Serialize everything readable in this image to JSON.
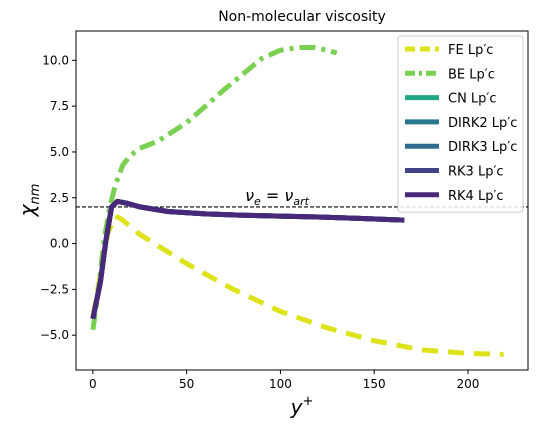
{
  "chart_data": {
    "type": "line",
    "title": "Non-molecular viscosity",
    "xlabel": {
      "main": "y",
      "sup": "+"
    },
    "ylabel": {
      "main": "χ",
      "sub": "nm"
    },
    "xlim": [
      -9,
      232
    ],
    "ylim": [
      -6.9,
      11.6
    ],
    "xticks": [
      0,
      50,
      100,
      150,
      200
    ],
    "yticks": [
      -5.0,
      -2.5,
      0.0,
      2.5,
      5.0,
      7.5,
      10.0
    ],
    "xtick_labels": [
      "0",
      "50",
      "100",
      "150",
      "200"
    ],
    "ytick_labels": [
      "−5.0",
      "−2.5",
      "0.0",
      "2.5",
      "5.0",
      "7.5",
      "10.0"
    ],
    "hline": {
      "y": 2.0,
      "label": {
        "nu": "ν",
        "e": "e",
        "eq": " = ",
        "art": "art"
      }
    },
    "legend": {
      "position": "top-right"
    },
    "series": [
      {
        "name": "FE Lp′c",
        "color": "#dde318",
        "style": "dashed",
        "points": [
          [
            0,
            -4.0
          ],
          [
            4,
            -1.7
          ],
          [
            8,
            0.6
          ],
          [
            12,
            1.5
          ],
          [
            15,
            1.35
          ],
          [
            25,
            0.5
          ],
          [
            50,
            -1.1
          ],
          [
            75,
            -2.5
          ],
          [
            100,
            -3.7
          ],
          [
            125,
            -4.6
          ],
          [
            150,
            -5.3
          ],
          [
            175,
            -5.8
          ],
          [
            200,
            -6.0
          ],
          [
            219,
            -6.05
          ]
        ]
      },
      {
        "name": "BE Lp′c",
        "color": "#7ad151",
        "style": "dashdot",
        "points": [
          [
            0,
            -4.7
          ],
          [
            3,
            -2.5
          ],
          [
            6,
            0.2
          ],
          [
            9,
            2.0
          ],
          [
            12,
            3.2
          ],
          [
            16,
            4.3
          ],
          [
            20,
            4.8
          ],
          [
            25,
            5.2
          ],
          [
            35,
            5.6
          ],
          [
            50,
            6.6
          ],
          [
            70,
            8.4
          ],
          [
            90,
            10.1
          ],
          [
            100,
            10.55
          ],
          [
            110,
            10.7
          ],
          [
            118,
            10.7
          ],
          [
            125,
            10.55
          ],
          [
            130,
            10.4
          ]
        ]
      },
      {
        "name": "CN Lp′c",
        "color": "#22a884",
        "style": "solid",
        "points": [
          [
            0,
            -4.1
          ],
          [
            4,
            -2.1
          ],
          [
            7,
            0.2
          ],
          [
            10,
            2.0
          ],
          [
            13,
            2.3
          ],
          [
            18,
            2.2
          ],
          [
            25,
            2.0
          ],
          [
            40,
            1.75
          ],
          [
            60,
            1.62
          ],
          [
            80,
            1.55
          ],
          [
            100,
            1.5
          ],
          [
            120,
            1.45
          ],
          [
            140,
            1.38
          ],
          [
            166,
            1.28
          ]
        ]
      },
      {
        "name": "DIRK2 Lp′c",
        "color": "#2a788e",
        "style": "solid",
        "points": [
          [
            0,
            -4.1
          ],
          [
            4,
            -2.1
          ],
          [
            7,
            0.2
          ],
          [
            10,
            2.0
          ],
          [
            13,
            2.3
          ],
          [
            18,
            2.2
          ],
          [
            25,
            2.0
          ],
          [
            40,
            1.75
          ],
          [
            60,
            1.62
          ],
          [
            80,
            1.55
          ],
          [
            100,
            1.5
          ],
          [
            120,
            1.45
          ],
          [
            140,
            1.38
          ],
          [
            166,
            1.28
          ]
        ]
      },
      {
        "name": "DIRK3 Lp′c",
        "color": "#2f6b8e",
        "style": "solid",
        "points": [
          [
            0,
            -4.1
          ],
          [
            4,
            -2.1
          ],
          [
            7,
            0.2
          ],
          [
            10,
            2.0
          ],
          [
            13,
            2.3
          ],
          [
            18,
            2.2
          ],
          [
            25,
            2.0
          ],
          [
            40,
            1.75
          ],
          [
            60,
            1.62
          ],
          [
            80,
            1.55
          ],
          [
            100,
            1.5
          ],
          [
            120,
            1.45
          ],
          [
            140,
            1.38
          ],
          [
            166,
            1.28
          ]
        ]
      },
      {
        "name": "RK3 Lp′c",
        "color": "#414487",
        "style": "solid",
        "points": [
          [
            0,
            -4.1
          ],
          [
            4,
            -2.1
          ],
          [
            7,
            0.2
          ],
          [
            10,
            2.0
          ],
          [
            13,
            2.3
          ],
          [
            18,
            2.2
          ],
          [
            25,
            2.0
          ],
          [
            40,
            1.75
          ],
          [
            60,
            1.62
          ],
          [
            80,
            1.55
          ],
          [
            100,
            1.5
          ],
          [
            120,
            1.45
          ],
          [
            140,
            1.38
          ],
          [
            166,
            1.28
          ]
        ]
      },
      {
        "name": "RK4 Lp′c",
        "color": "#482878",
        "style": "solid",
        "points": [
          [
            0,
            -4.1
          ],
          [
            4,
            -2.1
          ],
          [
            7,
            0.2
          ],
          [
            10,
            2.0
          ],
          [
            13,
            2.3
          ],
          [
            18,
            2.2
          ],
          [
            25,
            2.0
          ],
          [
            40,
            1.75
          ],
          [
            60,
            1.62
          ],
          [
            80,
            1.55
          ],
          [
            100,
            1.5
          ],
          [
            120,
            1.45
          ],
          [
            140,
            1.38
          ],
          [
            166,
            1.28
          ]
        ]
      }
    ]
  }
}
